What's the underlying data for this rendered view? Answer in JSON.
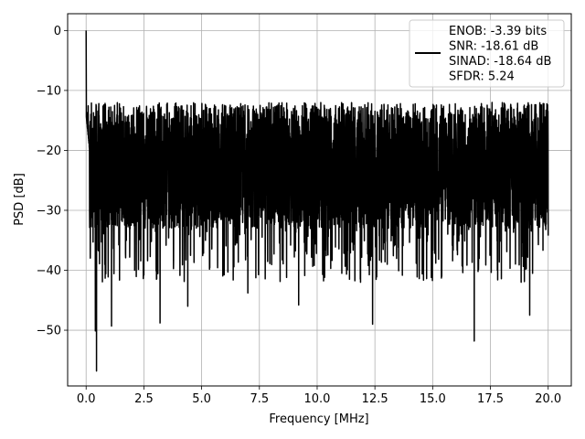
{
  "chart_data": {
    "type": "line",
    "title": "",
    "xlabel": "Frequency [MHz]",
    "ylabel": "PSD [dB]",
    "xlim": [
      -0.8,
      21.0
    ],
    "ylim": [
      -59.3,
      2.8
    ],
    "grid": true,
    "xticks": [
      0.0,
      2.5,
      5.0,
      7.5,
      10.0,
      12.5,
      15.0,
      17.5,
      20.0
    ],
    "xtick_labels": [
      "0.0",
      "2.5",
      "5.0",
      "7.5",
      "10.0",
      "12.5",
      "15.0",
      "17.5",
      "20.0"
    ],
    "yticks": [
      0,
      -10,
      -20,
      -30,
      -40,
      -50
    ],
    "ytick_labels": [
      "0",
      "−10",
      "−20",
      "−30",
      "−40",
      "−50"
    ],
    "line_color": "#000000",
    "legend": {
      "location": "upper right",
      "lines": [
        "ENOB: -3.39 bits",
        "SNR: -18.61 dB",
        "SINAD: -18.64 dB",
        "SFDR: 5.24"
      ]
    },
    "series": [
      {
        "x_start": 0.0,
        "x_end": 20.0,
        "noise_floor_band": [
          -33,
          -12
        ],
        "peak": {
          "x": 0.0,
          "y": 0.0
        },
        "notable_dips": [
          {
            "x": 0.45,
            "y": -56.8
          },
          {
            "x": 0.4,
            "y": -50.1
          },
          {
            "x": 1.1,
            "y": -49.3
          },
          {
            "x": 3.2,
            "y": -48.8
          },
          {
            "x": 9.2,
            "y": -45.8
          },
          {
            "x": 12.4,
            "y": -49.0
          },
          {
            "x": 16.8,
            "y": -51.8
          },
          {
            "x": 19.2,
            "y": -47.5
          },
          {
            "x": 4.4,
            "y": -46.0
          },
          {
            "x": 2.5,
            "y": -40.8
          },
          {
            "x": 7.0,
            "y": -43.8
          },
          {
            "x": 11.4,
            "y": -41.5
          },
          {
            "x": 17.8,
            "y": -40.0
          }
        ]
      }
    ]
  }
}
